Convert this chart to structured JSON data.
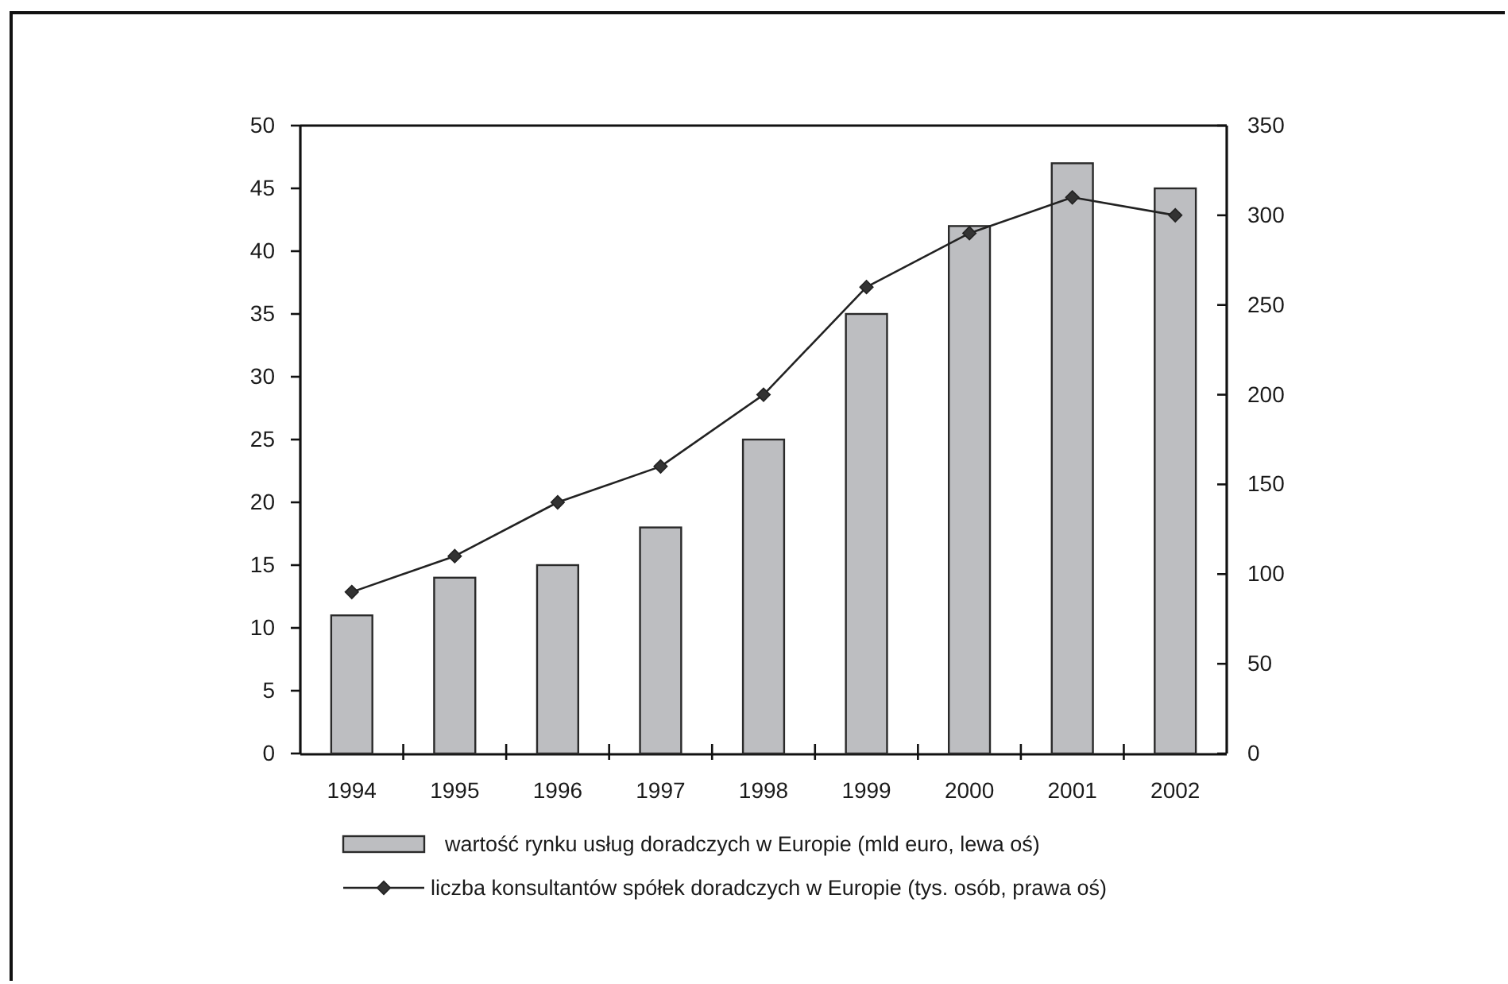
{
  "chart_data": {
    "type": "bar",
    "categories": [
      "1994",
      "1995",
      "1996",
      "1997",
      "1998",
      "1999",
      "2000",
      "2001",
      "2002"
    ],
    "series": [
      {
        "name": "wartość rynku usług doradczych w Europie (mld euro, lewa oś)",
        "color": "#bdbec1",
        "values": [
          11,
          14,
          15,
          18,
          25,
          35,
          42,
          47,
          45
        ]
      },
      {
        "name": "liczba konsultantów spółek doradczych w Europie (tys. osób, prawa oś)",
        "type": "line",
        "axis": "y2",
        "color": "#222222",
        "values": [
          90,
          110,
          140,
          160,
          200,
          260,
          290,
          310,
          300
        ]
      }
    ],
    "ylim": [
      0,
      50
    ],
    "yticks": [
      0,
      5,
      10,
      15,
      20,
      25,
      30,
      35,
      40,
      45,
      50
    ],
    "y2lim": [
      0,
      350
    ],
    "y2ticks": [
      0,
      50,
      100,
      150,
      200,
      250,
      300,
      350
    ],
    "legend": "bottom",
    "marker": "diamond",
    "line_style": "solid"
  }
}
